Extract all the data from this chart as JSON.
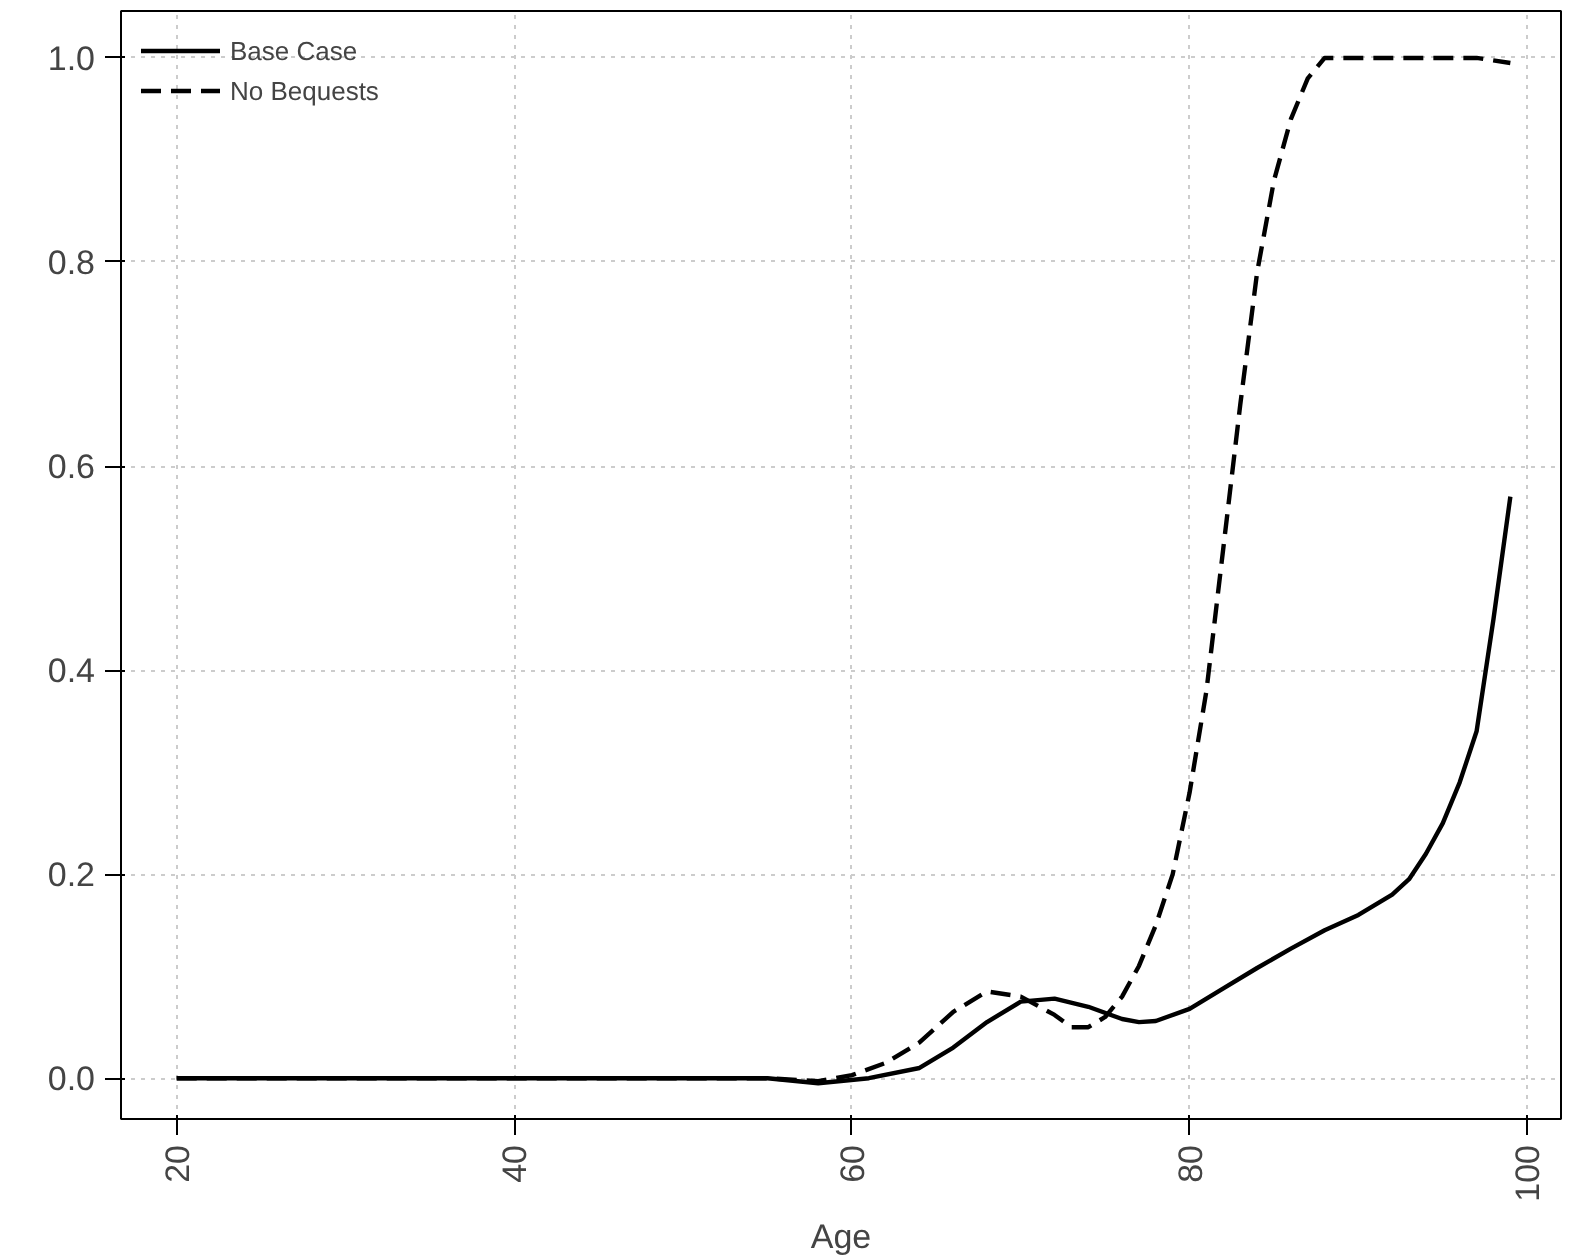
{
  "chart_data": {
    "type": "line",
    "xlabel": "Age",
    "xlim": [
      16.7,
      102
    ],
    "ylim": [
      -0.04,
      1.046
    ],
    "xticks": [
      20,
      40,
      60,
      80,
      100
    ],
    "yticks": [
      {
        "value": 0,
        "label": "0.0"
      },
      {
        "value": 0.2,
        "label": "0.2"
      },
      {
        "value": 0.4,
        "label": "0.4"
      },
      {
        "value": 0.6,
        "label": "0.6"
      },
      {
        "value": 0.8,
        "label": "0.8"
      },
      {
        "value": 1,
        "label": "1.0"
      }
    ],
    "grid": true,
    "legend": "top left",
    "series": [
      {
        "name": "Base Case",
        "color": "#000000",
        "line_style": "solid",
        "x": [
          20,
          30,
          40,
          50,
          55,
          58,
          61,
          64,
          66,
          68,
          70,
          72,
          74,
          76,
          77,
          78,
          80,
          82,
          84,
          86,
          88,
          90,
          92,
          93,
          94,
          95,
          96,
          97,
          98,
          99
        ],
        "values": [
          0,
          0,
          0,
          0,
          0,
          -0.005,
          0,
          0.01,
          0.03,
          0.055,
          0.075,
          0.078,
          0.07,
          0.058,
          0.055,
          0.056,
          0.068,
          0.088,
          0.108,
          0.127,
          0.145,
          0.16,
          0.18,
          0.195,
          0.22,
          0.25,
          0.29,
          0.34,
          0.45,
          0.57
        ]
      },
      {
        "name": "No Bequests",
        "color": "#000000",
        "line_style": "dashed",
        "x": [
          20,
          30,
          40,
          50,
          55,
          58,
          60,
          62,
          64,
          66,
          68,
          70,
          72,
          73,
          74,
          75,
          76,
          77,
          78,
          79,
          80,
          81,
          82,
          83,
          84,
          85,
          86,
          87,
          88,
          90,
          95,
          97,
          99
        ],
        "values": [
          0,
          0,
          0,
          0,
          0,
          -0.003,
          0.003,
          0.015,
          0.035,
          0.065,
          0.085,
          0.08,
          0.062,
          0.05,
          0.05,
          0.06,
          0.08,
          0.11,
          0.15,
          0.2,
          0.28,
          0.38,
          0.52,
          0.66,
          0.79,
          0.88,
          0.94,
          0.98,
          1.0,
          1.0,
          1.0,
          1.0,
          0.995
        ]
      }
    ]
  }
}
